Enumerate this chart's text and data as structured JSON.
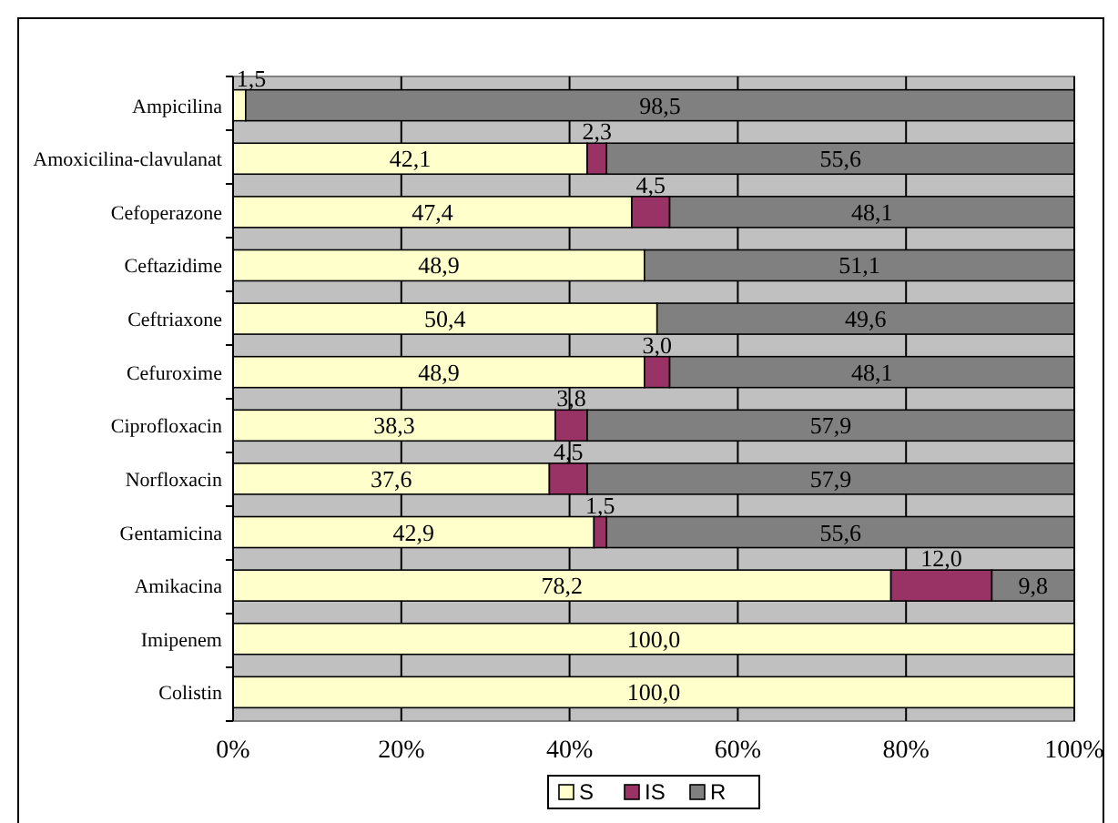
{
  "chart_data": {
    "type": "bar",
    "orientation": "horizontal",
    "stacked": true,
    "categories": [
      "Ampicilina",
      "Amoxicilina-clavulanat",
      "Cefoperazone",
      "Ceftazidime",
      "Ceftriaxone",
      "Cefuroxime",
      "Ciprofloxacin",
      "Norfloxacin",
      "Gentamicina",
      "Amikacina",
      "Imipenem",
      "Colistin"
    ],
    "series": [
      {
        "name": "S",
        "color": "#ffffcc",
        "values": [
          1.5,
          42.1,
          47.4,
          48.9,
          50.4,
          48.9,
          38.3,
          37.6,
          42.9,
          78.2,
          100,
          100
        ],
        "value_labels": [
          "1,5",
          "42,1",
          "47,4",
          "48,9",
          "50,4",
          "48,9",
          "38,3",
          "37,6",
          "42,9",
          "78,2",
          "100,0",
          "100,0"
        ]
      },
      {
        "name": "IS",
        "color": "#993366",
        "values": [
          0,
          2.3,
          4.5,
          0,
          0,
          3.0,
          3.8,
          4.5,
          1.5,
          12.0,
          0,
          0
        ],
        "value_labels": [
          null,
          "2,3",
          "4,5",
          null,
          null,
          "3,0",
          "3,8",
          "4,5",
          "1,5",
          "12,0",
          null,
          null
        ]
      },
      {
        "name": "R",
        "color": "#808080",
        "values": [
          98.5,
          55.6,
          48.1,
          51.1,
          49.6,
          48.1,
          57.9,
          57.9,
          55.6,
          9.8,
          0,
          0
        ],
        "value_labels": [
          "98,5",
          "55,6",
          "48,1",
          "51,1",
          "49,6",
          "48,1",
          "57,9",
          "57,9",
          "55,6",
          "9,8",
          null,
          null
        ]
      }
    ],
    "xlim": [
      0,
      100
    ],
    "xticks": [
      {
        "value": 0,
        "label": "0%"
      },
      {
        "value": 20,
        "label": "20%"
      },
      {
        "value": 40,
        "label": "40%"
      },
      {
        "value": 60,
        "label": "60%"
      },
      {
        "value": 80,
        "label": "80%"
      },
      {
        "value": 100,
        "label": "100%"
      }
    ],
    "grid": "x",
    "legend": "bottom"
  }
}
